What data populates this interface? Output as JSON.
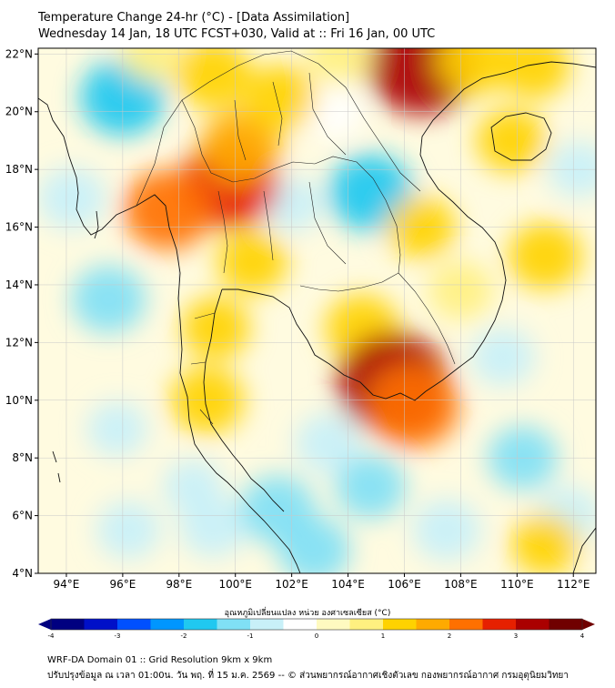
{
  "header": {
    "title_line1": "Temperature Change 24-hr (°C) - [Data Assimilation]",
    "title_line2": "Wednesday 14 Jan, 18 UTC FCST+030, Valid at :: Fri 16 Jan, 00 UTC"
  },
  "map": {
    "lat_labels": [
      "22°N",
      "20°N",
      "18°N",
      "16°N",
      "14°N",
      "12°N",
      "10°N",
      "8°N",
      "6°N",
      "4°N"
    ],
    "lon_labels": [
      "94°E",
      "96°E",
      "98°E",
      "100°E",
      "102°E",
      "104°E",
      "106°E",
      "108°E",
      "110°E",
      "112°E"
    ],
    "lat_range": [
      4,
      22.2
    ],
    "lon_range": [
      93.0,
      112.8
    ]
  },
  "colorbar": {
    "label": "อุณหภูมิเปลี่ยนแปลง หน่วย องศาเซลเซียส (°C)",
    "tick_labels": [
      "-4",
      "-3",
      "-2",
      "-1",
      "0",
      "1",
      "2",
      "3",
      "4"
    ],
    "range": [
      -4,
      4
    ],
    "colors": [
      "#000080",
      "#0010c8",
      "#0050ff",
      "#0096ff",
      "#20c8f0",
      "#80e0f5",
      "#c8f0f8",
      "#ffffff",
      "#fffac0",
      "#fff080",
      "#ffd200",
      "#ffaa00",
      "#ff7000",
      "#e62000",
      "#aa0000",
      "#700000"
    ]
  },
  "footer": {
    "line1": "WRF-DA Domain 01 :: Grid Resolution 9km x 9km",
    "line2": "ปรับปรุงข้อมูล ณ เวลา 01:00น. วัน พฤ. ที่ 15 ม.ค. 2569 -- © ส่วนพยากรณ์อากาศเชิงตัวเลข กองพยากรณ์อากาศ กรมอุตุนิยมวิทยา"
  },
  "field_blobs": [
    {
      "lon": 96.0,
      "lat": 20.5,
      "value": -1.8
    },
    {
      "lon": 94.2,
      "lat": 17.0,
      "value": -1.0
    },
    {
      "lon": 95.5,
      "lat": 13.5,
      "value": -1.3
    },
    {
      "lon": 95.8,
      "lat": 9.0,
      "value": -0.6
    },
    {
      "lon": 96.2,
      "lat": 5.5,
      "value": -0.8
    },
    {
      "lon": 98.5,
      "lat": 7.0,
      "value": -0.6
    },
    {
      "lon": 99.2,
      "lat": 5.6,
      "value": -0.9
    },
    {
      "lon": 101.5,
      "lat": 6.2,
      "value": -1.4
    },
    {
      "lon": 102.8,
      "lat": 4.8,
      "value": -1.2
    },
    {
      "lon": 103.3,
      "lat": 8.5,
      "value": -0.9
    },
    {
      "lon": 104.8,
      "lat": 7.0,
      "value": -1.1
    },
    {
      "lon": 107.5,
      "lat": 5.5,
      "value": -1.0
    },
    {
      "lon": 110.2,
      "lat": 8.0,
      "value": -1.1
    },
    {
      "lon": 111.8,
      "lat": 6.0,
      "value": -0.8
    },
    {
      "lon": 109.5,
      "lat": 11.5,
      "value": -0.8
    },
    {
      "lon": 112.2,
      "lat": 18.0,
      "value": -0.7
    },
    {
      "lon": 104.8,
      "lat": 17.2,
      "value": -1.8
    },
    {
      "lon": 102.0,
      "lat": 16.8,
      "value": -0.6
    },
    {
      "lon": 103.5,
      "lat": 20.0,
      "value": -0.5
    },
    {
      "lon": 99.8,
      "lat": 17.5,
      "value": 2.5
    },
    {
      "lon": 100.2,
      "lat": 18.8,
      "value": 1.6
    },
    {
      "lon": 97.6,
      "lat": 16.6,
      "value": 2.0
    },
    {
      "lon": 99.2,
      "lat": 21.3,
      "value": 1.4
    },
    {
      "lon": 101.6,
      "lat": 20.5,
      "value": 1.2
    },
    {
      "lon": 100.6,
      "lat": 14.8,
      "value": 1.1
    },
    {
      "lon": 99.3,
      "lat": 12.5,
      "value": 1.0
    },
    {
      "lon": 99.0,
      "lat": 10.0,
      "value": 1.3
    },
    {
      "lon": 104.5,
      "lat": 12.5,
      "value": 1.3
    },
    {
      "lon": 105.6,
      "lat": 10.6,
      "value": 3.2
    },
    {
      "lon": 106.3,
      "lat": 9.8,
      "value": 2.2
    },
    {
      "lon": 106.6,
      "lat": 16.0,
      "value": 1.0
    },
    {
      "lon": 106.6,
      "lat": 21.6,
      "value": 3.0
    },
    {
      "lon": 108.5,
      "lat": 21.8,
      "value": 1.4
    },
    {
      "lon": 110.6,
      "lat": 21.6,
      "value": 1.2
    },
    {
      "lon": 109.8,
      "lat": 19.0,
      "value": 1.1
    },
    {
      "lon": 111.0,
      "lat": 15.0,
      "value": 1.3
    },
    {
      "lon": 108.0,
      "lat": 13.8,
      "value": 0.8
    },
    {
      "lon": 111.0,
      "lat": 5.0,
      "value": 1.0
    },
    {
      "lon": 103.7,
      "lat": 22.0,
      "value": 0.9
    },
    {
      "lon": 97.0,
      "lat": 22.0,
      "value": 0.6
    }
  ]
}
